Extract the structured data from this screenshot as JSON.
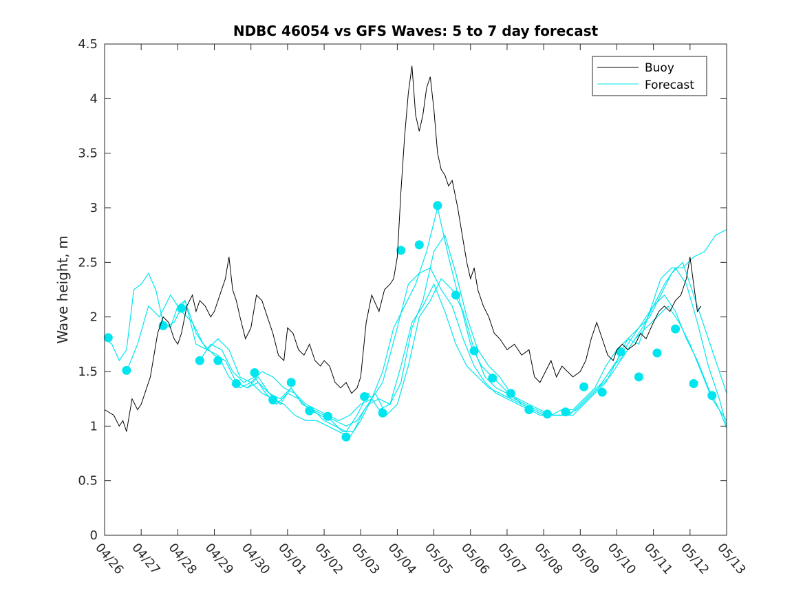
{
  "chart_data": {
    "type": "line",
    "title": "NDBC 46054 vs GFS Waves: 5 to 7 day forecast",
    "xlabel": "",
    "ylabel": "Wave height, m",
    "xlim": [
      0,
      17
    ],
    "ylim": [
      0,
      4.5
    ],
    "yticks": [
      0,
      0.5,
      1,
      1.5,
      2,
      2.5,
      3,
      3.5,
      4,
      4.5
    ],
    "ytick_labels": [
      "0",
      "0.5",
      "1",
      "1.5",
      "2",
      "2.5",
      "3",
      "3.5",
      "4",
      "4.5"
    ],
    "xtick_labels": [
      "04/26",
      "04/27",
      "04/28",
      "04/29",
      "04/30",
      "05/01",
      "05/02",
      "05/03",
      "05/04",
      "05/05",
      "05/06",
      "05/07",
      "05/08",
      "05/09",
      "05/10",
      "05/11",
      "05/12",
      "05/13"
    ],
    "grid": false,
    "legend": {
      "placement": "top-right",
      "entries": [
        {
          "name": "Buoy",
          "color": "#000000"
        },
        {
          "name": "Forecast",
          "color": "#00e5ee"
        }
      ]
    },
    "colors": {
      "buoy": "#000000",
      "forecast": "#00e5ee"
    },
    "buoy": {
      "name": "Buoy",
      "x": [
        0.0,
        0.25,
        0.4,
        0.5,
        0.6,
        0.75,
        0.9,
        1.0,
        1.25,
        1.45,
        1.6,
        1.75,
        1.9,
        2.0,
        2.1,
        2.25,
        2.4,
        2.5,
        2.6,
        2.75,
        2.9,
        3.0,
        3.15,
        3.3,
        3.4,
        3.5,
        3.6,
        3.7,
        3.85,
        4.0,
        4.15,
        4.3,
        4.45,
        4.6,
        4.75,
        4.9,
        5.0,
        5.15,
        5.3,
        5.45,
        5.6,
        5.75,
        5.9,
        6.0,
        6.15,
        6.3,
        6.45,
        6.6,
        6.75,
        6.9,
        7.0,
        7.15,
        7.3,
        7.5,
        7.65,
        7.8,
        7.9,
        8.0,
        8.1,
        8.2,
        8.3,
        8.4,
        8.5,
        8.6,
        8.7,
        8.8,
        8.9,
        9.0,
        9.1,
        9.2,
        9.3,
        9.4,
        9.5,
        9.65,
        9.8,
        9.9,
        10.0,
        10.1,
        10.2,
        10.35,
        10.5,
        10.65,
        10.8,
        11.0,
        11.2,
        11.4,
        11.6,
        11.75,
        11.9,
        12.05,
        12.2,
        12.35,
        12.5,
        12.65,
        12.8,
        13.0,
        13.15,
        13.3,
        13.45,
        13.6,
        13.75,
        13.9,
        14.0,
        14.15,
        14.3,
        14.5,
        14.65,
        14.8,
        15.0,
        15.15,
        15.3,
        15.45,
        15.6,
        15.75,
        15.9,
        16.0,
        16.1,
        16.2,
        16.3
      ],
      "y": [
        1.15,
        1.1,
        1.0,
        1.05,
        0.95,
        1.25,
        1.15,
        1.2,
        1.45,
        1.85,
        2.0,
        1.95,
        1.8,
        1.75,
        1.85,
        2.1,
        2.2,
        2.05,
        2.15,
        2.1,
        2.0,
        2.05,
        2.2,
        2.35,
        2.55,
        2.25,
        2.15,
        2.0,
        1.8,
        1.9,
        2.2,
        2.15,
        2.0,
        1.85,
        1.65,
        1.6,
        1.9,
        1.85,
        1.7,
        1.65,
        1.75,
        1.6,
        1.55,
        1.6,
        1.55,
        1.4,
        1.35,
        1.4,
        1.3,
        1.35,
        1.45,
        1.95,
        2.2,
        2.05,
        2.25,
        2.3,
        2.35,
        2.55,
        3.15,
        3.65,
        4.05,
        4.3,
        3.85,
        3.7,
        3.85,
        4.1,
        4.2,
        3.9,
        3.5,
        3.35,
        3.3,
        3.2,
        3.25,
        3.0,
        2.7,
        2.5,
        2.35,
        2.45,
        2.25,
        2.1,
        2.0,
        1.85,
        1.8,
        1.7,
        1.75,
        1.65,
        1.7,
        1.45,
        1.4,
        1.5,
        1.6,
        1.45,
        1.55,
        1.5,
        1.45,
        1.5,
        1.6,
        1.8,
        1.95,
        1.8,
        1.65,
        1.6,
        1.7,
        1.75,
        1.7,
        1.75,
        1.85,
        1.8,
        1.95,
        2.05,
        2.1,
        2.05,
        2.15,
        2.2,
        2.35,
        2.55,
        2.3,
        2.05,
        2.1
      ]
    },
    "forecast_markers": {
      "name": "Forecast",
      "x": [
        0.1,
        0.6,
        1.6,
        2.1,
        2.6,
        3.1,
        3.6,
        4.1,
        4.6,
        5.1,
        5.6,
        6.1,
        6.6,
        7.1,
        7.6,
        8.1,
        8.6,
        9.1,
        9.6,
        10.1,
        10.6,
        11.1,
        11.6,
        12.1,
        12.6,
        13.1,
        13.6,
        14.1,
        14.6,
        15.1,
        15.6,
        16.1,
        16.6
      ],
      "y": [
        1.81,
        1.51,
        1.92,
        2.08,
        1.6,
        1.6,
        1.39,
        1.49,
        1.24,
        1.4,
        1.14,
        1.09,
        0.9,
        1.27,
        1.12,
        2.61,
        2.66,
        3.02,
        2.2,
        1.69,
        1.44,
        1.3,
        1.15,
        1.11,
        1.13,
        1.36,
        1.31,
        1.68,
        1.45,
        1.67,
        1.89,
        1.39,
        1.28
      ]
    },
    "forecast_runs": [
      {
        "x": [
          0.0,
          0.2,
          0.4,
          0.6,
          0.8,
          1.0,
          1.2,
          1.4,
          1.6,
          1.8,
          2.0,
          2.2,
          2.5,
          2.8,
          3.1,
          3.4,
          3.7,
          4.0,
          4.3,
          4.6,
          4.9,
          5.2,
          5.5,
          5.8,
          6.1,
          6.4,
          6.7,
          7.0,
          7.3,
          7.6,
          8.0,
          8.3,
          8.6,
          8.9,
          9.2,
          9.5,
          9.8,
          10.1,
          10.4,
          10.7,
          11.0,
          11.3,
          11.6,
          11.9,
          12.2,
          12.5,
          12.8,
          13.1,
          13.4,
          13.7,
          14.0,
          14.3,
          14.6,
          14.9,
          15.2,
          15.5,
          15.8,
          16.1,
          16.4,
          16.7,
          17.0
        ],
        "y": [
          1.8,
          1.75,
          1.6,
          1.7,
          2.25,
          2.3,
          2.4,
          2.25,
          1.95,
          1.9,
          2.1,
          2.15,
          1.75,
          1.7,
          1.8,
          1.7,
          1.45,
          1.4,
          1.5,
          1.45,
          1.35,
          1.3,
          1.2,
          1.15,
          1.1,
          1.05,
          1.1,
          1.2,
          1.25,
          1.4,
          1.9,
          2.3,
          2.4,
          2.45,
          2.25,
          2.1,
          1.8,
          1.55,
          1.4,
          1.3,
          1.25,
          1.2,
          1.15,
          1.1,
          1.1,
          1.15,
          1.15,
          1.25,
          1.35,
          1.55,
          1.7,
          1.8,
          1.9,
          2.0,
          2.2,
          2.4,
          2.5,
          2.2,
          1.9,
          1.6,
          1.3
        ]
      },
      {
        "x": [
          0.6,
          0.9,
          1.2,
          1.5,
          1.8,
          2.1,
          2.4,
          2.7,
          3.0,
          3.3,
          3.6,
          3.9,
          4.2,
          4.5,
          4.8,
          5.1,
          5.4,
          5.7,
          6.0,
          6.3,
          6.6,
          6.9,
          7.2,
          7.5,
          7.8,
          8.1,
          8.4,
          8.7,
          9.0,
          9.3,
          9.6,
          9.9,
          10.2,
          10.5,
          10.8,
          11.1,
          11.4,
          11.7,
          12.0,
          12.3,
          12.6,
          12.9,
          13.2,
          13.5,
          13.8,
          14.1,
          14.4,
          14.7,
          15.0,
          15.3,
          15.6,
          15.9,
          16.2,
          16.5,
          16.8,
          17.0
        ],
        "y": [
          1.5,
          1.75,
          2.1,
          2.0,
          2.2,
          2.05,
          1.95,
          1.75,
          1.65,
          1.6,
          1.4,
          1.35,
          1.45,
          1.3,
          1.25,
          1.35,
          1.2,
          1.15,
          1.05,
          1.0,
          0.95,
          1.1,
          1.3,
          1.15,
          1.2,
          1.4,
          1.9,
          2.15,
          2.6,
          2.75,
          2.4,
          2.0,
          1.7,
          1.55,
          1.45,
          1.3,
          1.2,
          1.15,
          1.1,
          1.1,
          1.1,
          1.15,
          1.25,
          1.35,
          1.45,
          1.6,
          1.75,
          1.9,
          2.1,
          2.3,
          2.45,
          2.3,
          1.95,
          1.55,
          1.25,
          1.0
        ]
      },
      {
        "x": [
          1.6,
          1.9,
          2.2,
          2.5,
          2.8,
          3.1,
          3.4,
          3.7,
          4.0,
          4.3,
          4.6,
          4.9,
          5.2,
          5.5,
          5.8,
          6.1,
          6.4,
          6.7,
          7.0,
          7.3,
          7.6,
          7.9,
          8.2,
          8.5,
          8.8,
          9.1,
          9.4,
          9.7,
          10.0,
          10.3,
          10.6,
          10.9,
          11.2,
          11.5,
          11.8,
          12.1,
          12.4,
          12.7,
          13.0,
          13.3,
          13.6,
          13.9,
          14.2,
          14.5,
          14.8,
          15.1,
          15.4,
          15.7,
          16.0,
          16.3,
          16.6,
          17.0
        ],
        "y": [
          1.9,
          1.95,
          2.15,
          1.85,
          1.7,
          1.65,
          1.45,
          1.35,
          1.4,
          1.3,
          1.25,
          1.2,
          1.1,
          1.05,
          1.05,
          1.0,
          0.95,
          0.9,
          1.05,
          1.25,
          1.5,
          1.9,
          2.1,
          2.3,
          2.6,
          3.0,
          2.55,
          2.15,
          1.75,
          1.55,
          1.45,
          1.35,
          1.25,
          1.2,
          1.15,
          1.1,
          1.1,
          1.1,
          1.2,
          1.3,
          1.4,
          1.55,
          1.65,
          1.8,
          1.9,
          2.0,
          2.1,
          1.95,
          1.75,
          1.5,
          1.25,
          1.05
        ]
      },
      {
        "x": [
          2.6,
          2.9,
          3.2,
          3.5,
          3.8,
          4.1,
          4.4,
          4.7,
          5.0,
          5.3,
          5.6,
          5.9,
          6.2,
          6.5,
          6.8,
          7.1,
          7.4,
          7.7,
          8.0,
          8.3,
          8.6,
          8.9,
          9.2,
          9.5,
          9.8,
          10.1,
          10.4,
          10.7,
          11.0,
          11.3,
          11.6,
          11.9,
          12.2,
          12.5,
          12.8,
          13.1,
          13.4,
          13.7,
          14.0,
          14.3,
          14.6,
          14.9,
          15.2,
          15.5,
          15.8,
          16.1,
          16.4,
          16.7,
          17.0
        ],
        "y": [
          1.6,
          1.75,
          1.7,
          1.5,
          1.4,
          1.45,
          1.3,
          1.2,
          1.3,
          1.25,
          1.15,
          1.1,
          1.05,
          0.95,
          0.95,
          1.15,
          1.3,
          1.1,
          1.2,
          1.55,
          2.0,
          2.15,
          2.35,
          2.25,
          2.05,
          1.7,
          1.45,
          1.35,
          1.3,
          1.25,
          1.2,
          1.15,
          1.1,
          1.1,
          1.1,
          1.2,
          1.3,
          1.4,
          1.6,
          1.8,
          1.75,
          2.05,
          2.35,
          2.45,
          2.45,
          2.55,
          2.6,
          2.75,
          2.8
        ]
      },
      {
        "x": [
          3.6,
          3.9,
          4.2,
          4.5,
          4.8,
          5.1,
          5.4,
          5.7,
          6.0,
          6.3,
          6.6,
          6.9,
          7.2,
          7.5,
          7.8,
          8.1,
          8.4,
          8.7,
          9.0,
          9.3,
          9.6,
          9.9,
          10.2,
          10.5,
          10.8,
          11.1,
          11.4,
          11.7,
          12.0,
          12.3,
          12.6,
          12.9,
          13.2,
          13.5,
          13.8,
          14.1,
          14.4,
          14.7,
          15.0,
          15.3,
          15.6,
          15.9,
          16.2,
          16.5,
          16.8,
          17.0
        ],
        "y": [
          1.4,
          1.35,
          1.4,
          1.3,
          1.2,
          1.35,
          1.2,
          1.15,
          1.1,
          1.05,
          1.0,
          1.05,
          1.2,
          1.25,
          1.2,
          1.55,
          1.95,
          2.1,
          2.3,
          2.05,
          1.75,
          1.55,
          1.45,
          1.35,
          1.3,
          1.25,
          1.2,
          1.15,
          1.1,
          1.1,
          1.1,
          1.15,
          1.25,
          1.35,
          1.5,
          1.65,
          1.8,
          1.95,
          2.1,
          2.2,
          2.05,
          1.8,
          1.6,
          1.35,
          1.15,
          0.98
        ]
      }
    ]
  }
}
